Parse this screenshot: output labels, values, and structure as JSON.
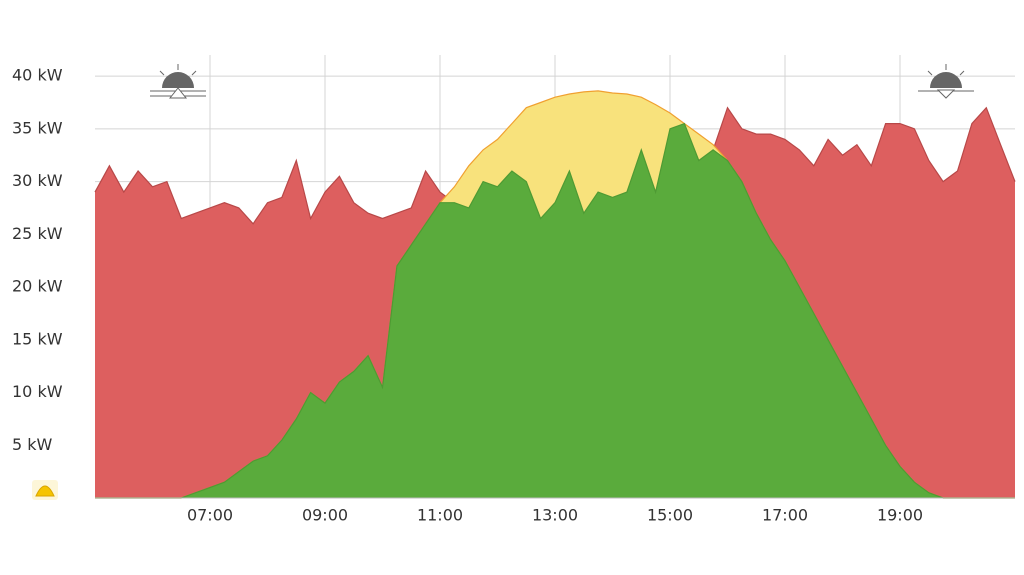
{
  "chart_data": {
    "type": "area",
    "x": [
      5,
      5.25,
      5.5,
      5.75,
      6,
      6.25,
      6.5,
      6.75,
      7,
      7.25,
      7.5,
      7.75,
      8,
      8.25,
      8.5,
      8.75,
      9,
      9.25,
      9.5,
      9.75,
      10,
      10.25,
      10.5,
      10.75,
      11,
      11.25,
      11.5,
      11.75,
      12,
      12.25,
      12.5,
      12.75,
      13,
      13.25,
      13.5,
      13.75,
      14,
      14.25,
      14.5,
      14.75,
      15,
      15.25,
      15.5,
      15.75,
      16,
      16.25,
      16.5,
      16.75,
      17,
      17.25,
      17.5,
      17.75,
      18,
      18.25,
      18.5,
      18.75,
      19,
      19.25,
      19.5,
      19.75,
      20,
      20.25,
      20.5,
      20.75,
      21
    ],
    "series": [
      {
        "color": "#dd5f5f",
        "line_color": "#b84848",
        "values": [
          29,
          31.5,
          29,
          31,
          29.5,
          30,
          26.5,
          27,
          27.5,
          28,
          27.5,
          26,
          28,
          28.5,
          32,
          26.5,
          29,
          30.5,
          28,
          27,
          26.5,
          27,
          27.5,
          31,
          29,
          28,
          27.5,
          30,
          29.5,
          31,
          30,
          26.5,
          28,
          31,
          27,
          29,
          28.5,
          29,
          33,
          29,
          35,
          35.5,
          32,
          33,
          37,
          35,
          34.5,
          34.5,
          34,
          33,
          31.5,
          34,
          32.5,
          33.5,
          31.5,
          35.5,
          35.5,
          35,
          32,
          30,
          31,
          35.5,
          37,
          33.5,
          30
        ]
      },
      {
        "color": "#f8e27c",
        "line_color": "#f0a030",
        "values": [
          0,
          0,
          0,
          0,
          0,
          0,
          0,
          0.5,
          1,
          1.5,
          2.5,
          3.5,
          4,
          5.5,
          7.5,
          10,
          9,
          11,
          12,
          13.5,
          10.5,
          22,
          24,
          26,
          28,
          29.5,
          31.5,
          33,
          34,
          35.5,
          37,
          37.5,
          38,
          38.3,
          38.5,
          38.6,
          38.4,
          38.3,
          38,
          37.3,
          36.5,
          35.5,
          34.5,
          33.5,
          32,
          30,
          27,
          24.5,
          22.5,
          20,
          17.5,
          15,
          12.5,
          10,
          7.5,
          5,
          3,
          1.5,
          0.5,
          0,
          0,
          0,
          0,
          0,
          0
        ]
      },
      {
        "color": "#5aab3c",
        "line_color": "#4e9a33",
        "values": [
          0,
          0,
          0,
          0,
          0,
          0,
          0,
          0.5,
          1,
          1.5,
          2.5,
          3.5,
          4,
          5.5,
          7.5,
          10,
          9,
          11,
          12,
          13.5,
          10.5,
          22,
          24,
          26,
          28,
          28,
          27.5,
          30,
          29.5,
          31,
          30,
          26.5,
          28,
          31,
          27,
          29,
          28.5,
          29,
          33,
          29,
          35,
          35.5,
          32,
          33,
          32,
          30,
          27,
          24.5,
          22.5,
          20,
          17.5,
          15,
          12.5,
          10,
          7.5,
          5,
          3,
          1.5,
          0.5,
          0,
          0,
          0,
          0,
          0,
          0
        ]
      }
    ],
    "xlim": [
      5,
      21
    ],
    "xticks": [
      {
        "value": 7,
        "label": "07:00"
      },
      {
        "value": 9,
        "label": "09:00"
      },
      {
        "value": 11,
        "label": "11:00"
      },
      {
        "value": 13,
        "label": "13:00"
      },
      {
        "value": 15,
        "label": "15:00"
      },
      {
        "value": 17,
        "label": "17:00"
      },
      {
        "value": 19,
        "label": "19:00"
      }
    ],
    "ylim": [
      0,
      42
    ],
    "yticks": [
      {
        "value": 5,
        "label": "5 kW"
      },
      {
        "value": 10,
        "label": "10 kW"
      },
      {
        "value": 15,
        "label": "15 kW"
      },
      {
        "value": 20,
        "label": "20 kW"
      },
      {
        "value": 25,
        "label": "25 kW"
      },
      {
        "value": 30,
        "label": "30 kW"
      },
      {
        "value": 35,
        "label": "35 kW"
      },
      {
        "value": 40,
        "label": "40 kW"
      }
    ],
    "grid": true
  }
}
